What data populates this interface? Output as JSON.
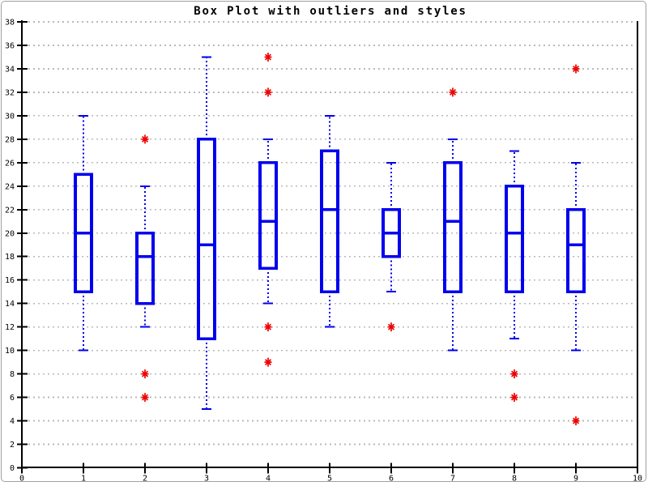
{
  "window": {
    "background": "#ffffff",
    "border_color": "#a0a0a0"
  },
  "chart_data": {
    "type": "boxplot",
    "title": "Box Plot with outliers and styles",
    "xlabel": "",
    "ylabel": "",
    "xlim": [
      0,
      10
    ],
    "ylim": [
      0,
      38
    ],
    "x_ticks": [
      "0",
      "1",
      "2",
      "3",
      "4",
      "5",
      "6",
      "7",
      "8",
      "9",
      "10"
    ],
    "y_ticks": [
      "0",
      "2",
      "4",
      "6",
      "8",
      "10",
      "12",
      "14",
      "16",
      "18",
      "20",
      "22",
      "24",
      "26",
      "28",
      "30",
      "32",
      "34",
      "36",
      "38"
    ],
    "grid": {
      "horizontal": true,
      "vertical": false,
      "style": "dashed"
    },
    "legend": "none",
    "colors": {
      "box": "#0000ee",
      "whisker": "#0000ee",
      "median": "#0000ee",
      "outlier": "#ee0000",
      "grid": "#bababa",
      "axis": "#000000",
      "text": "#000000"
    },
    "series": [
      {
        "x": 1,
        "whisker_low": 10,
        "q1": 15,
        "median": 20,
        "q3": 25,
        "whisker_high": 30,
        "outliers": []
      },
      {
        "x": 2,
        "whisker_low": 12,
        "q1": 14,
        "median": 18,
        "q3": 20,
        "whisker_high": 24,
        "outliers": [
          28,
          8,
          6
        ]
      },
      {
        "x": 3,
        "whisker_low": 5,
        "q1": 11,
        "median": 19,
        "q3": 28,
        "whisker_high": 35,
        "outliers": []
      },
      {
        "x": 4,
        "whisker_low": 14,
        "q1": 17,
        "median": 21,
        "q3": 26,
        "whisker_high": 28,
        "outliers": [
          35,
          32,
          12,
          9
        ]
      },
      {
        "x": 5,
        "whisker_low": 12,
        "q1": 15,
        "median": 22,
        "q3": 27,
        "whisker_high": 30,
        "outliers": []
      },
      {
        "x": 6,
        "whisker_low": 15,
        "q1": 18,
        "median": 20,
        "q3": 22,
        "whisker_high": 26,
        "outliers": [
          12
        ]
      },
      {
        "x": 7,
        "whisker_low": 10,
        "q1": 15,
        "median": 21,
        "q3": 26,
        "whisker_high": 28,
        "outliers": [
          32
        ]
      },
      {
        "x": 8,
        "whisker_low": 11,
        "q1": 15,
        "median": 20,
        "q3": 24,
        "whisker_high": 27,
        "outliers": [
          8,
          6
        ]
      },
      {
        "x": 9,
        "whisker_low": 10,
        "q1": 15,
        "median": 19,
        "q3": 22,
        "whisker_high": 26,
        "outliers": [
          34,
          4
        ]
      }
    ]
  }
}
